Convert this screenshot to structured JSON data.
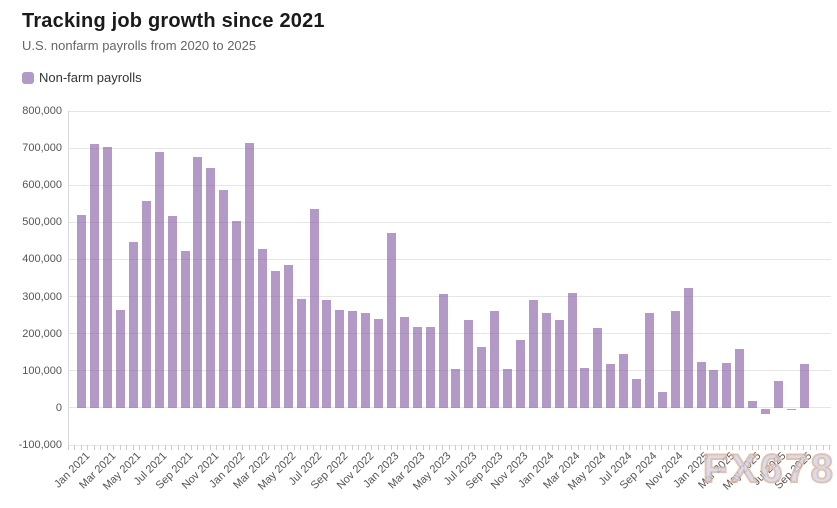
{
  "title": "Tracking job growth since 2021",
  "subtitle": "U.S. nonfarm payrolls from 2020 to 2025",
  "legend": {
    "label": "Non-farm payrolls"
  },
  "watermark": "FX678",
  "colors": {
    "bar_fill": "rgba(138,99,168,0.65)",
    "bar_solid": "#b29ac6",
    "grid": "#e6e6e6",
    "axis_text": "#555555",
    "title": "#1a1a1a",
    "subtitle": "#666666",
    "watermark_fill": "#ccd5f0",
    "watermark_stroke": "#dbb49b"
  },
  "chart_data": {
    "type": "bar",
    "title": "Tracking job growth since 2021",
    "subtitle": "U.S. nonfarm payrolls from 2020 to 2025",
    "series_name": "Non-farm payrolls",
    "categories": [
      "Jan 2021",
      "Feb 2021",
      "Mar 2021",
      "Apr 2021",
      "May 2021",
      "Jun 2021",
      "Jul 2021",
      "Aug 2021",
      "Sep 2021",
      "Oct 2021",
      "Nov 2021",
      "Dec 2021",
      "Jan 2022",
      "Feb 2022",
      "Mar 2022",
      "Apr 2022",
      "May 2022",
      "Jun 2022",
      "Jul 2022",
      "Aug 2022",
      "Sep 2022",
      "Oct 2022",
      "Nov 2022",
      "Dec 2022",
      "Jan 2023",
      "Feb 2023",
      "Mar 2023",
      "Apr 2023",
      "May 2023",
      "Jun 2023",
      "Jul 2023",
      "Aug 2023",
      "Sep 2023",
      "Oct 2023",
      "Nov 2023",
      "Dec 2023",
      "Jan 2024",
      "Feb 2024",
      "Mar 2024",
      "Apr 2024",
      "May 2024",
      "Jun 2024",
      "Jul 2024",
      "Aug 2024",
      "Sep 2024",
      "Oct 2024",
      "Nov 2024",
      "Dec 2024",
      "Jan 2025",
      "Feb 2025",
      "Mar 2025",
      "Apr 2025",
      "May 2025",
      "Jun 2025",
      "Jul 2025",
      "Aug 2025",
      "Sep 2025"
    ],
    "values": [
      520000,
      710000,
      704000,
      263000,
      447000,
      557000,
      689000,
      517000,
      424000,
      677000,
      647000,
      588000,
      504000,
      714000,
      428000,
      368000,
      386000,
      293000,
      537000,
      292000,
      263000,
      261000,
      256000,
      239000,
      472000,
      246000,
      217000,
      217000,
      306000,
      105000,
      236000,
      165000,
      262000,
      105000,
      182000,
      290000,
      256000,
      236000,
      310000,
      108000,
      216000,
      118000,
      144000,
      78000,
      255000,
      44000,
      261000,
      323000,
      125000,
      102000,
      120000,
      158000,
      19000,
      -13000,
      72000,
      -4000,
      119000
    ],
    "xlabel": "",
    "ylabel": "",
    "ylim": [
      -100000,
      800000
    ],
    "y_tick_step": 100000,
    "y_tick_labels": [
      "800,000",
      "700,000",
      "600,000",
      "500,000",
      "400,000",
      "300,000",
      "200,000",
      "100,000",
      "0",
      "-100,000"
    ],
    "x_label_every": 2,
    "grid": true,
    "legend_position": "top-left"
  }
}
